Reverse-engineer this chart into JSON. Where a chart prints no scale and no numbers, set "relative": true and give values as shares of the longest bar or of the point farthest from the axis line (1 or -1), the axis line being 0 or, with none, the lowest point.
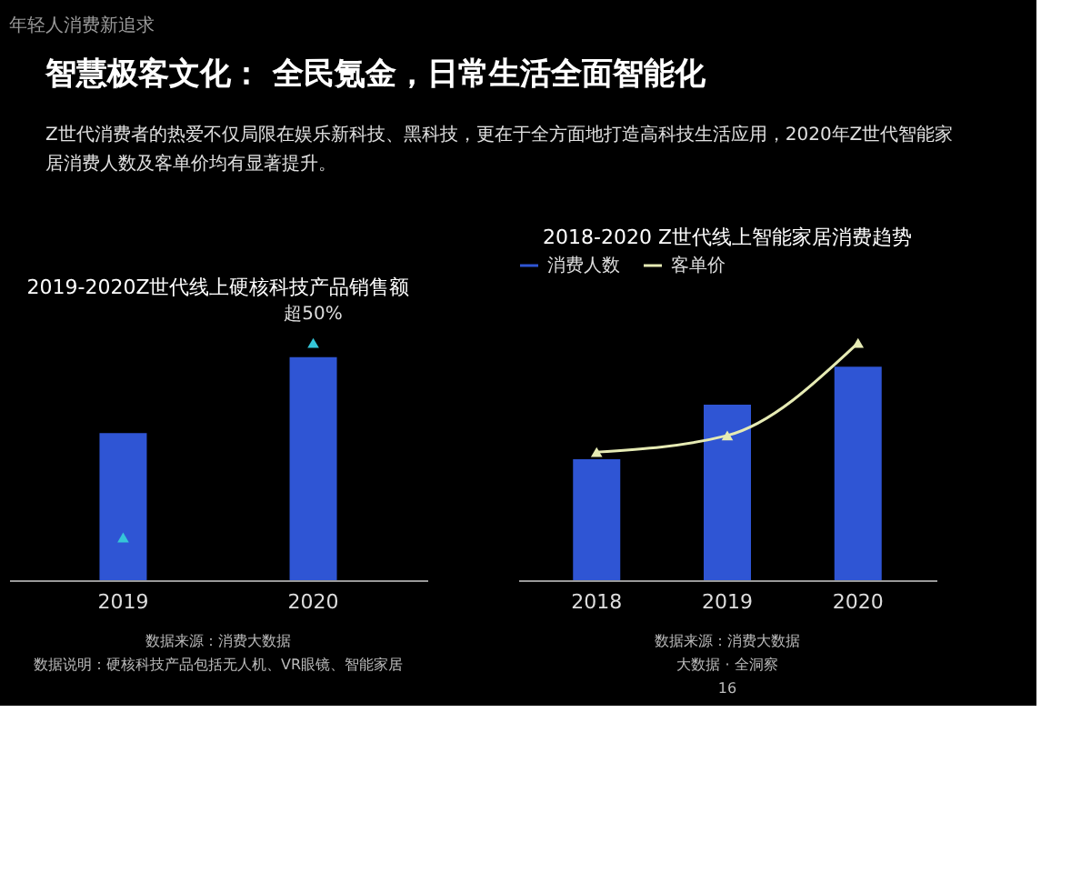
{
  "chart_data": [
    {
      "type": "other",
      "title": "智慧极客文化： 全民氪金，日常生活全面智能化",
      "subtitle": "Z世代消费者的热爱不仅局限在娱乐新科技、黑科技，更在于全方面地打造高科技生活应用，2020年Z世代智能家居消费人数及客单价均有显著提升。",
      "annotations": [
        "年轻人消费新追求"
      ]
    },
    {
      "type": "bar",
      "title": "2019-2020Z世代线上硬核科技产品销售额",
      "categories": [
        "2019",
        "2020"
      ],
      "relative": true,
      "marker": "triangle",
      "series": [
        {
          "type": "bar",
          "color": "#2f55d4",
          "values": [
            0.62,
            0.94
          ]
        },
        {
          "type": "scatter",
          "color": "#35c6d8",
          "values": [
            0.18,
            1
          ]
        }
      ],
      "annotations": [
        {
          "text": "超50%",
          "x": "2020",
          "y": 1
        },
        "数据来源：消费大数据",
        "数据说明：硬核科技产品包括无人机、VR眼镜、智能家居"
      ]
    },
    {
      "type": "bar",
      "title": "2018-2020 Z世代线上智能家居消费趋势",
      "categories": [
        "2018",
        "2019",
        "2020"
      ],
      "relative": true,
      "legend": "top",
      "marker": "triangle",
      "series": [
        {
          "name": "消费人数",
          "type": "bar",
          "color": "#2f55d4",
          "values": [
            0.51,
            0.74,
            0.9
          ]
        },
        {
          "name": "客单价",
          "type": "line",
          "color": "#e6ebb4",
          "values": [
            0.54,
            0.61,
            1
          ]
        }
      ],
      "annotations": [
        "数据来源：消费大数据",
        "大数据 · 全洞察",
        "16"
      ]
    }
  ]
}
